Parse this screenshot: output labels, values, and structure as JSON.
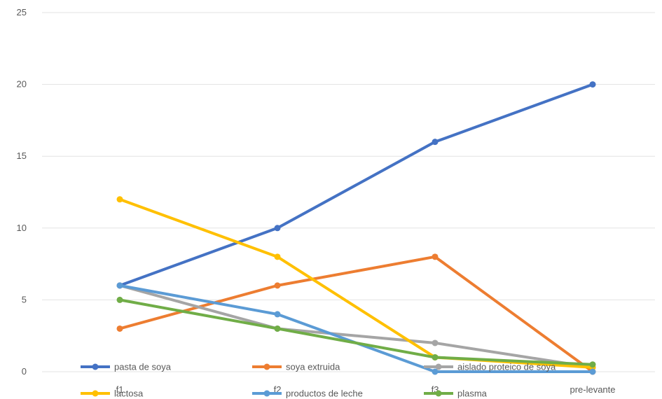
{
  "chart_data": {
    "type": "line",
    "title": "",
    "xlabel": "",
    "ylabel": "",
    "categories": [
      "f1",
      "f2",
      "f3",
      "pre-levante"
    ],
    "ylim": [
      0,
      25
    ],
    "yticks": [
      "0",
      "5",
      "10",
      "15",
      "20",
      "25"
    ],
    "grid": true,
    "legend_position": "bottom",
    "series": [
      {
        "name": "pasta de soya",
        "color": "#4472C4",
        "values": [
          6,
          10,
          16,
          20
        ]
      },
      {
        "name": "soya extruida",
        "color": "#ED7D31",
        "values": [
          3,
          6,
          8,
          0
        ]
      },
      {
        "name": "aislado proteico de soya",
        "color": "#A5A5A5",
        "values": [
          6,
          3,
          2,
          0.3
        ]
      },
      {
        "name": "lactosa",
        "color": "#FFC000",
        "values": [
          12,
          8,
          1,
          0.3
        ]
      },
      {
        "name": "productos de leche",
        "color": "#5B9BD5",
        "values": [
          6,
          4,
          0,
          0
        ]
      },
      {
        "name": "plasma",
        "color": "#70AD47",
        "values": [
          5,
          3,
          1,
          0.5
        ]
      }
    ]
  }
}
